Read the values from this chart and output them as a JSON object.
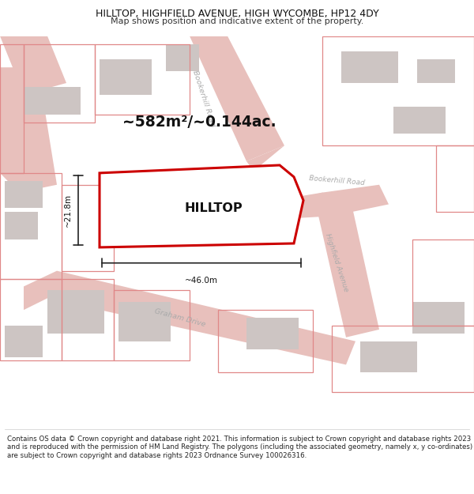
{
  "title_line1": "HILLTOP, HIGHFIELD AVENUE, HIGH WYCOMBE, HP12 4DY",
  "title_line2": "Map shows position and indicative extent of the property.",
  "footer_text": "Contains OS data © Crown copyright and database right 2021. This information is subject to Crown copyright and database rights 2023 and is reproduced with the permission of HM Land Registry. The polygons (including the associated geometry, namely x, y co-ordinates) are subject to Crown copyright and database rights 2023 Ordnance Survey 100026316.",
  "map_background": "#f7f2f1",
  "area_label": "~582m²/~0.144ac.",
  "property_name": "HILLTOP",
  "dim_width": "~46.0m",
  "dim_height": "~21.8m",
  "road_fill_color": "#e8c0bc",
  "building_color": "#cdc5c3",
  "property_outline_color": "#cc0000",
  "dim_line_color": "#222222",
  "road_label_color": "#aaaaaa",
  "map_xlim": [
    0,
    100
  ],
  "map_ylim": [
    0,
    100
  ]
}
